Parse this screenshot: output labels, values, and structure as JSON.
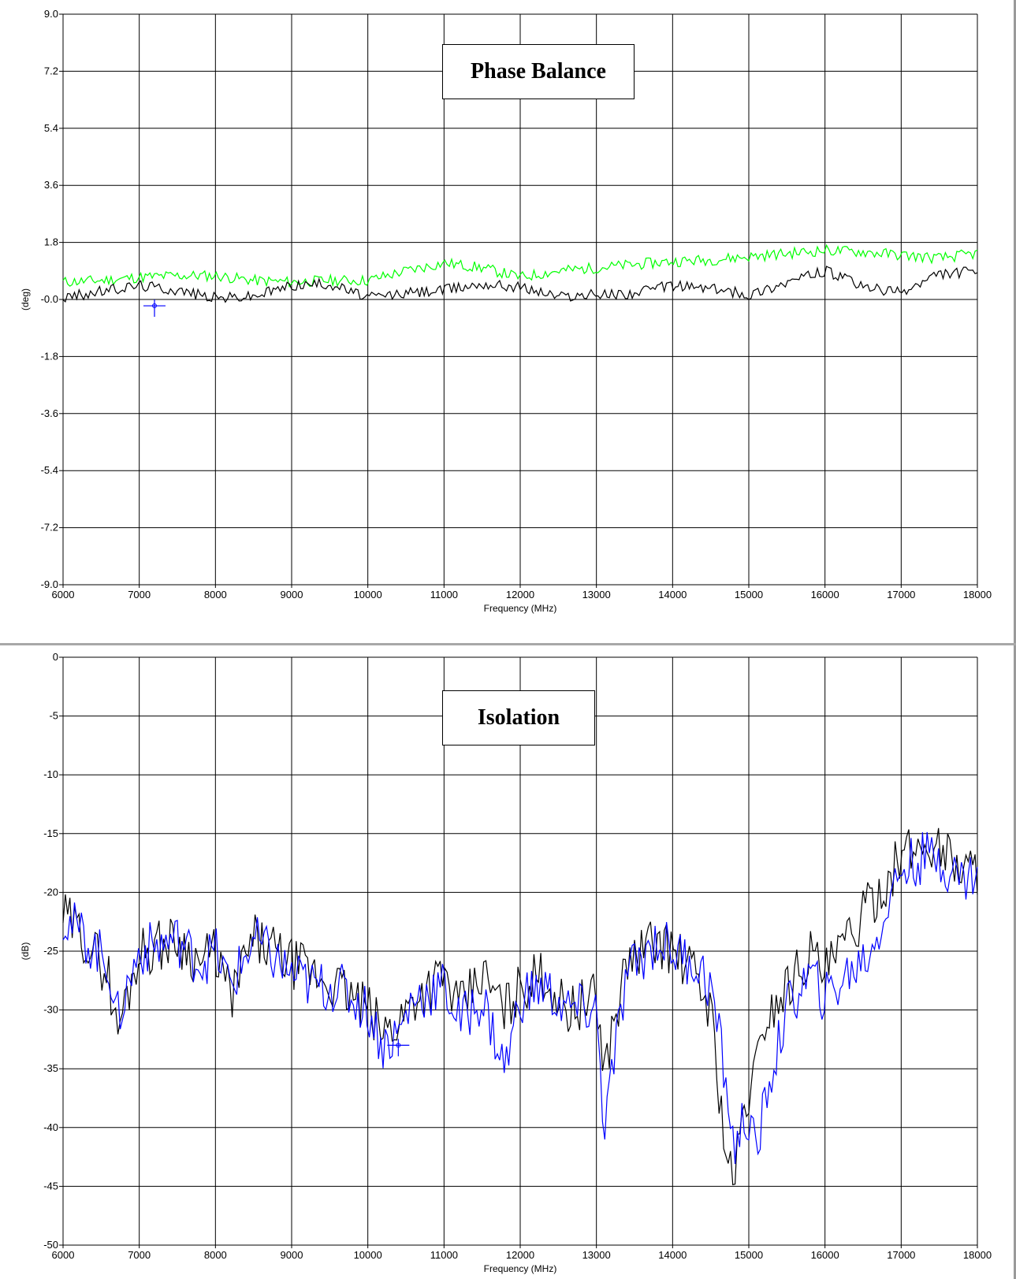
{
  "chart_data": [
    {
      "type": "line",
      "title": "Phase Balance",
      "xlabel": "Frequency (MHz)",
      "ylabel": "(deg)",
      "xlim": [
        6000,
        18000
      ],
      "ylim": [
        -9.0,
        9.0
      ],
      "x_ticks": [
        6000,
        7000,
        8000,
        9000,
        10000,
        11000,
        12000,
        13000,
        14000,
        15000,
        16000,
        17000,
        18000
      ],
      "y_ticks": [
        9.0,
        7.2,
        5.4,
        3.6,
        1.8,
        -0.0,
        -1.8,
        -3.6,
        -5.4,
        -7.2,
        -9.0
      ],
      "y_tick_labels": [
        "9.0",
        "7.2",
        "5.4",
        "3.6",
        "1.8",
        "-0.0",
        "-1.8",
        "-3.6",
        "-5.4",
        "-7.2",
        "-9.0"
      ],
      "grid": true,
      "marker": {
        "x": 7200,
        "y": -0.2,
        "color": "#0000ff"
      },
      "series": [
        {
          "color": "#00ff00",
          "x": [
            6000,
            6500,
            7000,
            7500,
            8000,
            8500,
            9000,
            9500,
            10000,
            10500,
            11000,
            11500,
            12000,
            12500,
            13000,
            13500,
            14000,
            14500,
            15000,
            15500,
            16000,
            16500,
            17000,
            17500,
            18000
          ],
          "values": [
            0.55,
            0.6,
            0.7,
            0.75,
            0.75,
            0.6,
            0.55,
            0.6,
            0.6,
            0.9,
            1.15,
            1.0,
            0.7,
            0.9,
            1.0,
            1.1,
            1.2,
            1.25,
            1.35,
            1.45,
            1.55,
            1.5,
            1.4,
            1.3,
            1.45
          ]
        },
        {
          "color": "#000000",
          "x": [
            6000,
            6500,
            7000,
            7500,
            8000,
            8500,
            9000,
            9500,
            10000,
            10500,
            11000,
            11500,
            12000,
            12500,
            13000,
            13500,
            14000,
            14500,
            15000,
            15500,
            16000,
            16500,
            17000,
            17500,
            18000
          ],
          "values": [
            0.05,
            0.25,
            0.45,
            0.3,
            0.05,
            0.1,
            0.45,
            0.5,
            0.05,
            0.2,
            0.3,
            0.5,
            0.4,
            0.1,
            0.15,
            0.2,
            0.45,
            0.35,
            0.15,
            0.55,
            0.9,
            0.4,
            0.2,
            0.8,
            0.9
          ]
        }
      ]
    },
    {
      "type": "line",
      "title": "Isolation",
      "xlabel": "Frequency (MHz)",
      "ylabel": "(dB)",
      "xlim": [
        6000,
        18000
      ],
      "ylim": [
        -50,
        0
      ],
      "x_ticks": [
        6000,
        7000,
        8000,
        9000,
        10000,
        11000,
        12000,
        13000,
        14000,
        15000,
        16000,
        17000,
        18000
      ],
      "y_ticks": [
        0,
        -5,
        -10,
        -15,
        -20,
        -25,
        -30,
        -35,
        -40,
        -45,
        -50
      ],
      "y_tick_labels": [
        "0",
        "-5",
        "-10",
        "-15",
        "-20",
        "-25",
        "-30",
        "-35",
        "-40",
        "-45",
        "-50"
      ],
      "grid": true,
      "marker": {
        "x": 10400,
        "y": -33,
        "color": "#0000ff"
      },
      "series": [
        {
          "color": "#000000",
          "x": [
            6000,
            6300,
            6600,
            6700,
            7000,
            7500,
            7800,
            8000,
            8200,
            8500,
            9000,
            9300,
            9600,
            10000,
            10200,
            10400,
            10600,
            11000,
            11200,
            11500,
            11800,
            12000,
            12300,
            12600,
            13000,
            13100,
            13400,
            13800,
            14000,
            14300,
            14500,
            14700,
            14800,
            14900,
            15000,
            15100,
            15200,
            15500,
            15800,
            16000,
            16300,
            16600,
            17000,
            17300,
            17500,
            17800,
            18000
          ],
          "values": [
            -22,
            -24,
            -27,
            -32,
            -25,
            -24,
            -26,
            -25,
            -29,
            -24,
            -26,
            -27,
            -28,
            -30,
            -32,
            -31,
            -29,
            -27,
            -30,
            -27,
            -30,
            -28,
            -27,
            -30,
            -29,
            -35,
            -26,
            -24,
            -25,
            -27,
            -30,
            -42,
            -45,
            -40,
            -37,
            -35,
            -31,
            -28,
            -25,
            -27,
            -24,
            -21,
            -17,
            -16,
            -16,
            -18,
            -18
          ]
        },
        {
          "color": "#0000ff",
          "x": [
            6000,
            6300,
            6600,
            6700,
            7000,
            7500,
            7800,
            8000,
            8200,
            8500,
            9000,
            9300,
            9600,
            10000,
            10200,
            10400,
            10600,
            11000,
            11200,
            11500,
            11800,
            12000,
            12300,
            12600,
            13000,
            13100,
            13400,
            13800,
            14000,
            14300,
            14500,
            14700,
            14800,
            14900,
            15000,
            15100,
            15200,
            15500,
            15800,
            16000,
            16300,
            16600,
            17000,
            17300,
            17500,
            17800,
            18000
          ],
          "values": [
            -22,
            -24,
            -26,
            -31,
            -25,
            -24,
            -26,
            -25,
            -28,
            -24,
            -27,
            -28,
            -28,
            -30,
            -33,
            -32,
            -29,
            -28,
            -31,
            -29,
            -35,
            -29,
            -28,
            -30,
            -30,
            -40,
            -27,
            -24,
            -25,
            -26,
            -28,
            -36,
            -42,
            -40,
            -39,
            -43,
            -38,
            -30,
            -27,
            -29,
            -27,
            -25,
            -18,
            -17,
            -17,
            -19,
            -18
          ]
        }
      ]
    }
  ]
}
